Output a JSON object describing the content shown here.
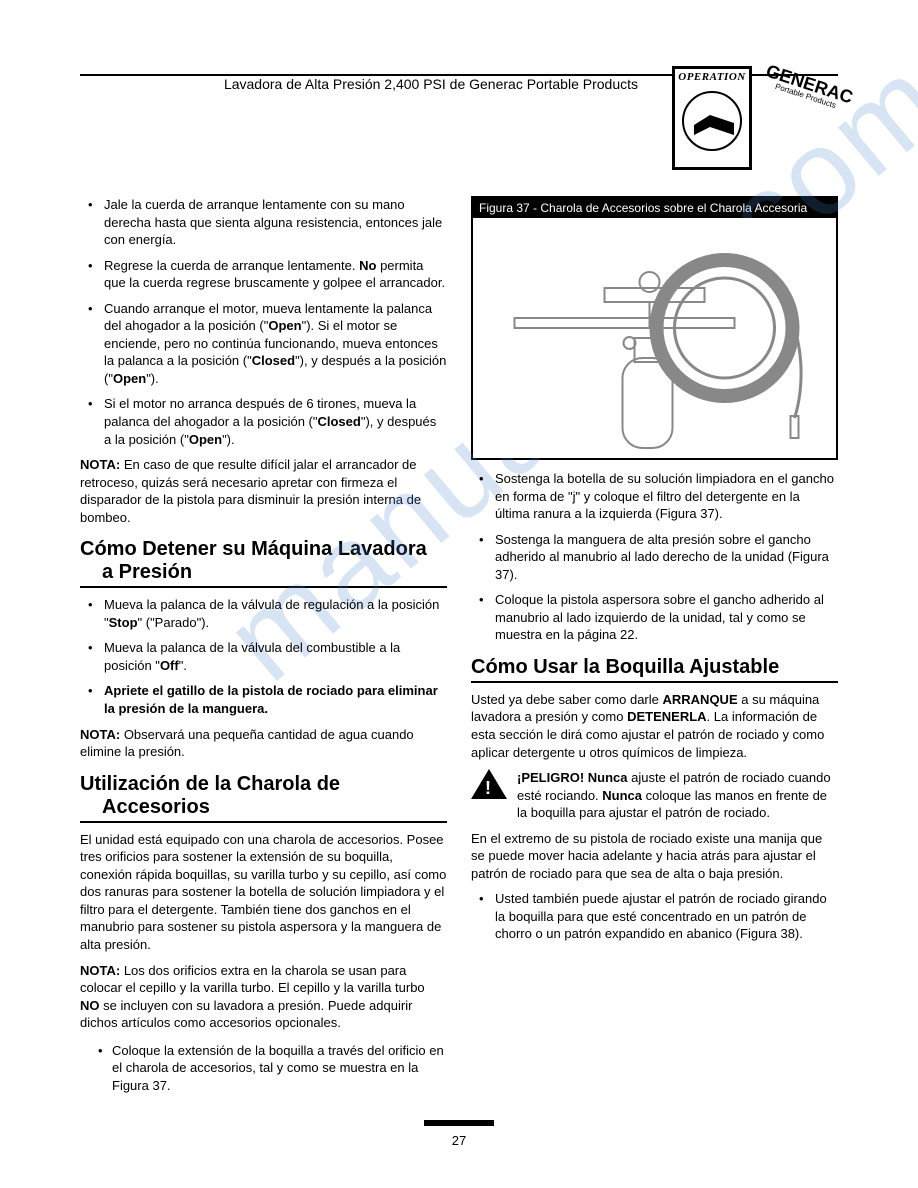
{
  "header": {
    "title": "Lavadora de Alta Presión 2,400 PSI de Generac Portable Products",
    "operation_label": "OPERATION",
    "generac_label": "GENERAC",
    "generac_sub": "Portable Products"
  },
  "watermark": "manualslib.com",
  "left": {
    "bullets_top": [
      "Jale la cuerda de arranque lentamente con su mano derecha hasta que sienta alguna resistencia, entonces jale con energía.",
      "Regrese la cuerda de arranque lentamente. <b>No</b> permita que la cuerda regrese bruscamente y golpee el arrancador.",
      "Cuando arranque el motor, mueva lentamente la palanca del ahogador a la posición (\"<b>Open</b>\"). Si el motor se enciende, pero no continúa funcionando, mueva entonces la palanca a la posición (\"<b>Closed</b>\"), y después a la posición (\"<b>Open</b>\").",
      "Si el motor no arranca después de 6 tirones, mueva la palanca del ahogador a la posición (\"<b>Closed</b>\"), y después a la posición (\"<b>Open</b>\")."
    ],
    "nota1": "<b>NOTA:</b> En caso de que resulte difícil jalar el arrancador de retroceso, quizás será necesario apretar con firmeza el disparador de la pistola para disminuir la presión interna de bombeo.",
    "h2_stop_l1": "Cómo Detener su Máquina Lavadora",
    "h2_stop_l2": "a Presión",
    "bullets_stop": [
      "Mueva la palanca de la válvula de regulación a la posición \"<b>Stop</b>\" (\"Parado\").",
      "Mueva la palanca de la válvula del combustible a la posición \"<b>Off</b>\".",
      "<b>Apriete el gatillo de la pistola de rociado para eliminar la presión de la manguera.</b>"
    ],
    "nota2": "<b>NOTA:</b> Observará una pequeña cantidad de agua cuando elimine la presión.",
    "h2_tray_l1": "Utilización de la Charola de",
    "h2_tray_l2": "Accesorios",
    "tray_para": "El unidad está equipado con una charola de accesorios. Posee tres orificios para sostener la extensión de su boquilla, conexión rápida boquillas, su varilla turbo y su cepillo, así como dos ranuras para sostener la botella de solución limpiadora y el filtro para el detergente. También tiene dos ganchos en el manubrio para sostener su pistola aspersora y la manguera de alta presión.",
    "nota3": "<b>NOTA:</b> Los dos orificios extra en la charola se usan para colocar el cepillo y la varilla turbo. El cepillo y la varilla turbo <b>NO</b> se incluyen con su lavadora a presión. Puede adquirir dichos artículos como accesorios opcionales.",
    "tray_sub": [
      "Coloque la extensión de la boquilla a través del orificio en el charola de accesorios, tal y como se muestra en la Figura 37."
    ]
  },
  "right": {
    "fig_caption": "Figura 37 - Charola de Accesorios sobre el Charola Accesoria",
    "bullets_fig": [
      "Sostenga la botella de su solución limpiadora en el gancho en forma de \"j\" y coloque el filtro del detergente en la última ranura a la izquierda (Figura 37).",
      "Sostenga la manguera de alta presión sobre el gancho adherido al manubrio al lado derecho de la unidad (Figura 37).",
      "Coloque la pistola aspersora sobre el gancho adherido al manubrio al lado izquierdo de la unidad, tal y como se muestra en la página 22."
    ],
    "h2_nozzle": "Cómo Usar la Boquilla Ajustable",
    "nozzle_para": "Usted ya debe saber como darle <b>ARRANQUE</b> a su máquina lavadora a presión y como <b>DETENERLA</b>. La información de esta sección le dirá como ajustar el patrón de rociado y como aplicar detergente u otros químicos de limpieza.",
    "warning": "<b>¡PELIGRO! Nunca</b> ajuste el patrón de rociado cuando esté rociando. <b>Nunca</b> coloque las manos en frente de la boquilla para ajustar el patrón de rociado.",
    "end_para": "En el extremo de su pistola de rociado existe una manija que se puede mover hacia adelante y hacia atrás para ajustar el patrón de rociado para que sea de alta o baja presión.",
    "end_bullets": [
      "Usted también puede ajustar el patrón de rociado girando la boquilla para que esté concentrado en un patrón de chorro o un patrón expandido en abanico (Figura 38)."
    ]
  },
  "page_number": "27"
}
